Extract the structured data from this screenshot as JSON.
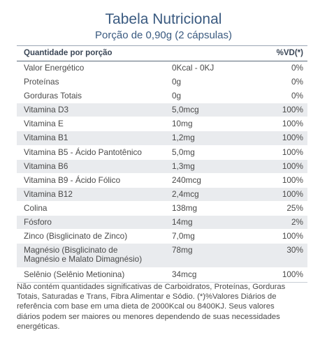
{
  "title": "Tabela Nutricional",
  "subtitle": "Porção de 0,90g (2 cápsulas)",
  "table": {
    "header": {
      "nutrient": "Quantidade por porção",
      "vd": "%VD(*)"
    },
    "rows": [
      {
        "nutrient": "Valor Energético",
        "amount": "0Kcal - 0KJ",
        "vd": "0%"
      },
      {
        "nutrient": "Proteínas",
        "amount": "0g",
        "vd": "0%"
      },
      {
        "nutrient": "Gorduras Totais",
        "amount": "0g",
        "vd": "0%"
      },
      {
        "nutrient": "Vitamina D3",
        "amount": "5,0mcg",
        "vd": "100%"
      },
      {
        "nutrient": "Vitamina E",
        "amount": "10mg",
        "vd": "100%"
      },
      {
        "nutrient": "Vitamina B1",
        "amount": "1,2mg",
        "vd": "100%"
      },
      {
        "nutrient": "Vitamina B5 - Ácido Pantotênico",
        "amount": "5,0mg",
        "vd": "100%"
      },
      {
        "nutrient": "Vitamina B6",
        "amount": "1,3mg",
        "vd": "100%"
      },
      {
        "nutrient": "Vitamina B9 - Ácido Fólico",
        "amount": "240mcg",
        "vd": "100%"
      },
      {
        "nutrient": "Vitamina B12",
        "amount": "2,4mcg",
        "vd": "100%"
      },
      {
        "nutrient": "Colina",
        "amount": "138mg",
        "vd": "25%"
      },
      {
        "nutrient": "Fósforo",
        "amount": "14mg",
        "vd": "2%"
      },
      {
        "nutrient": "Zinco (Bisglicinato de Zinco)",
        "amount": "7,0mg",
        "vd": "100%"
      },
      {
        "nutrient_line1": "Magnésio (Bisglicinato de",
        "nutrient_line2": "Magnésio e Malato Dimagnésio)",
        "amount": "78mg",
        "vd": "30%"
      },
      {
        "nutrient": "Selênio (Selênio Metionina)",
        "amount": "34mcg",
        "vd": "100%"
      }
    ]
  },
  "footer": {
    "line1": "Não contém quantidades significativas de Carboidratos, Proteínas, Gorduras",
    "line2": "Totais, Saturadas e Trans, Fibra Alimentar e Sódio. (*)%Valores Diários de",
    "line3": "referência com base em uma dieta de 2000Kcal ou 8400KJ. Seus valores",
    "line4": "diários podem ser maiores ou menores dependendo de suas necessidades",
    "line5": "energéticas."
  },
  "colors": {
    "title": "#3a5a80",
    "row_shade": "#e9ebee",
    "text": "#4a4a4a"
  }
}
